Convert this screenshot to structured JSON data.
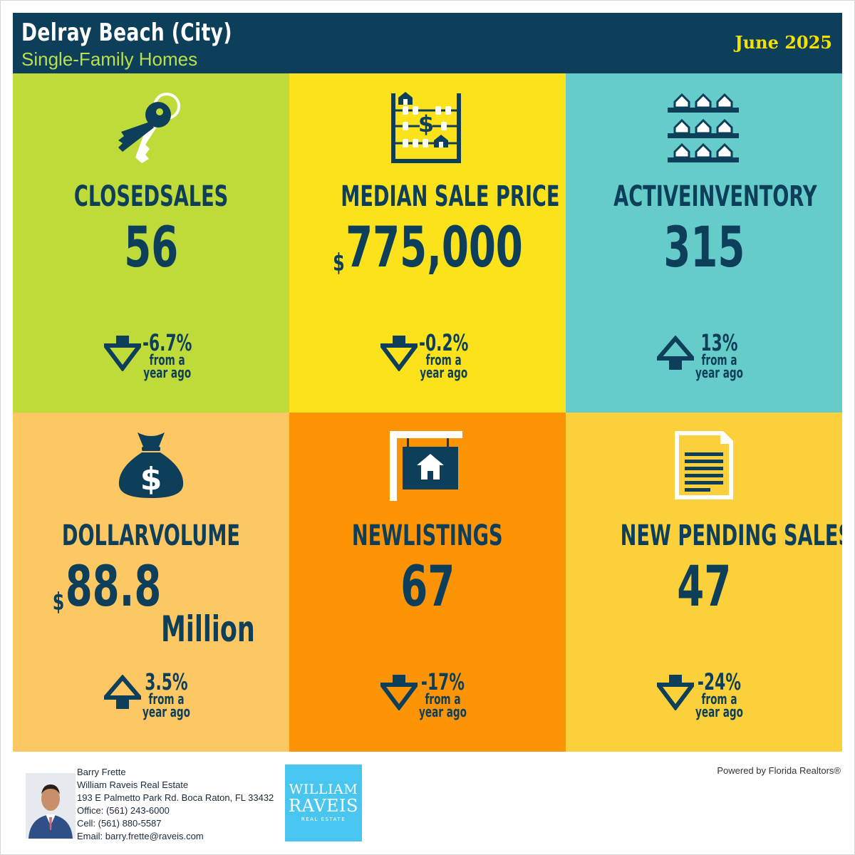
{
  "header": {
    "title": "Delray Beach (City)",
    "subtitle": "Single-Family Homes",
    "date": "June 2025"
  },
  "colors": {
    "header_bg": "#0e3f5a",
    "text": "#0e3f5a",
    "tile_closed_sales": "#bedb3a",
    "tile_median_price": "#fce21a",
    "tile_active_inventory": "#66ccca",
    "tile_dollar_volume": "#fdc764",
    "tile_new_listings": "#fc9406",
    "tile_new_pending": "#fbd03b"
  },
  "tiles": [
    {
      "label": "CLOSEDSALES",
      "currency": "",
      "value": "56",
      "suffix": "",
      "direction": "down",
      "change": "-6.7%",
      "from_line": "from a",
      "year_line": "year ago",
      "icon": "keys-icon"
    },
    {
      "label": "MEDIAN SALE PRICE",
      "currency": "$",
      "value": "775,000",
      "suffix": "",
      "direction": "down",
      "change": "-0.2%",
      "from_line": "from a",
      "year_line": "year ago",
      "icon": "abacus-icon"
    },
    {
      "label": "ACTIVEINVENTORY",
      "currency": "",
      "value": "315",
      "suffix": "",
      "direction": "up",
      "change": "13%",
      "from_line": "from a",
      "year_line": "year ago",
      "icon": "houses-grid-icon"
    },
    {
      "label": "DOLLARVOLUME",
      "currency": "$",
      "value": "88.8",
      "suffix": "Million",
      "direction": "up",
      "change": "3.5%",
      "from_line": "from a",
      "year_line": "year ago",
      "icon": "money-bag-icon"
    },
    {
      "label": "NEWLISTINGS",
      "currency": "",
      "value": "67",
      "suffix": "",
      "direction": "down",
      "change": "-17%",
      "from_line": "from a",
      "year_line": "year ago",
      "icon": "for-sale-sign-icon"
    },
    {
      "label": "NEW PENDING SALES",
      "currency": "",
      "value": "47",
      "suffix": "",
      "direction": "down",
      "change": "-24%",
      "from_line": "from a",
      "year_line": "year ago",
      "icon": "document-icon"
    }
  ],
  "footer": {
    "name": "Barry Frette",
    "company": "William Raveis Real Estate",
    "address": "193 E Palmetto Park Rd. Boca Raton, FL 33432",
    "office": "Office: (561) 243-6000",
    "cell": "Cell: (561) 880-5587",
    "email": "Email: barry.frette@raveis.com",
    "logo_line1": "WILLIAM",
    "logo_line2": "RAVEIS",
    "logo_line3": "REAL ESTATE",
    "powered": "Powered by Florida Realtors®"
  }
}
